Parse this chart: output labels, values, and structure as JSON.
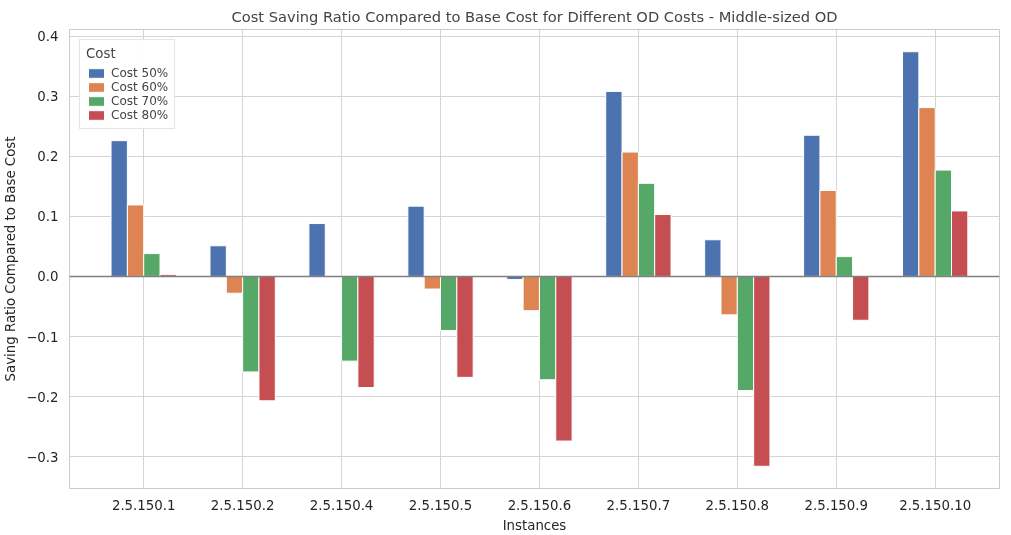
{
  "chart_data": {
    "type": "bar",
    "title": "Cost Saving Ratio Compared to Base Cost for Different OD Costs - Middle-sized OD",
    "xlabel": "Instances",
    "ylabel": "Saving Ratio Compared to Base Cost",
    "legend_title": "Cost",
    "categories": [
      "2.5.150.1",
      "2.5.150.2",
      "2.5.150.4",
      "2.5.150.5",
      "2.5.150.6",
      "2.5.150.7",
      "2.5.150.8",
      "2.5.150.9",
      "2.5.150.10"
    ],
    "series": [
      {
        "name": "Cost 50%",
        "color": "#4c72b0",
        "values": [
          0.226,
          0.051,
          0.088,
          0.117,
          -0.005,
          0.308,
          0.061,
          0.235,
          0.374
        ]
      },
      {
        "name": "Cost 60%",
        "color": "#dd8452",
        "values": [
          0.119,
          -0.028,
          null,
          -0.021,
          -0.057,
          0.207,
          -0.064,
          0.143,
          0.281
        ]
      },
      {
        "name": "Cost 70%",
        "color": "#55a868",
        "values": [
          0.038,
          -0.159,
          -0.141,
          -0.09,
          -0.172,
          0.155,
          -0.19,
          0.033,
          0.177
        ]
      },
      {
        "name": "Cost 80%",
        "color": "#c44e52",
        "values": [
          0.003,
          -0.207,
          -0.185,
          -0.168,
          -0.274,
          0.103,
          -0.316,
          -0.073,
          0.109
        ]
      }
    ],
    "ylim": [
      -0.353,
      0.411
    ],
    "yticks": [
      {
        "value": -0.3,
        "label": "−0.3"
      },
      {
        "value": -0.2,
        "label": "−0.2"
      },
      {
        "value": -0.1,
        "label": "−0.1"
      },
      {
        "value": 0,
        "label": "0.0"
      },
      {
        "value": 0.1,
        "label": "0.1"
      },
      {
        "value": 0.2,
        "label": "0.2"
      },
      {
        "value": 0.3,
        "label": "0.3"
      },
      {
        "value": 0.4,
        "label": "0.4"
      }
    ],
    "ref_lines": [
      {
        "axis": "y",
        "value": 0,
        "color": "#808080"
      }
    ],
    "grid": true,
    "legend": "top left"
  }
}
